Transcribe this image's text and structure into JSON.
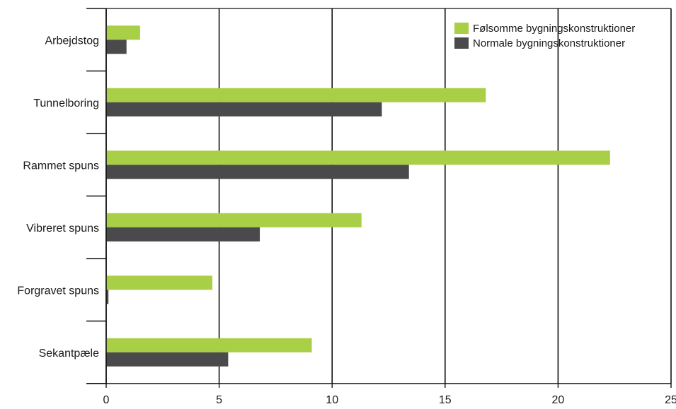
{
  "chart_data": {
    "type": "bar",
    "orientation": "horizontal",
    "categories": [
      "Arbejdstog",
      "Tunnelboring",
      "Rammet spuns",
      "Vibreret spuns",
      "Forgravet spuns",
      "Sekantpæle"
    ],
    "series": [
      {
        "name": "Følsomme bygningskonstruktioner",
        "color": "#a8cf45",
        "values": [
          1.5,
          16.8,
          22.3,
          11.3,
          4.7,
          9.1
        ]
      },
      {
        "name": "Normale bygningskonstruktioner",
        "color": "#4a4a4c",
        "values": [
          0.9,
          12.2,
          13.4,
          6.8,
          0.1,
          5.4
        ]
      }
    ],
    "xlim": [
      0,
      25
    ],
    "xticks": [
      0,
      5,
      10,
      15,
      20,
      25
    ],
    "grid": "vertical",
    "legend_position": "top-right"
  }
}
